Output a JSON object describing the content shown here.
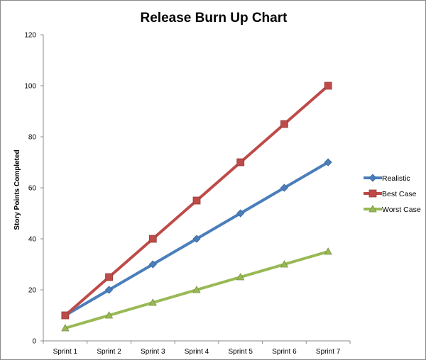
{
  "chart_data": {
    "type": "line",
    "title": "Release Burn Up Chart",
    "xlabel": "",
    "ylabel": "Story Points Completed",
    "categories": [
      "Sprint 1",
      "Sprint 2",
      "Sprint 3",
      "Sprint 4",
      "Sprint 5",
      "Sprint 6",
      "Sprint 7"
    ],
    "ylim": [
      0,
      120
    ],
    "yticks": [
      0,
      20,
      40,
      60,
      80,
      100,
      120
    ],
    "grid": false,
    "legend_position": "right",
    "series": [
      {
        "name": "Realistic",
        "values": [
          10,
          20,
          30,
          40,
          50,
          60,
          70
        ],
        "color": "#4a7ebb",
        "marker": "diamond"
      },
      {
        "name": "Best Case",
        "values": [
          10,
          25,
          40,
          55,
          70,
          85,
          100
        ],
        "color": "#be4b48",
        "marker": "square"
      },
      {
        "name": "Worst Case",
        "values": [
          5,
          10,
          15,
          20,
          25,
          30,
          35
        ],
        "color": "#98b954",
        "marker": "triangle"
      }
    ]
  }
}
